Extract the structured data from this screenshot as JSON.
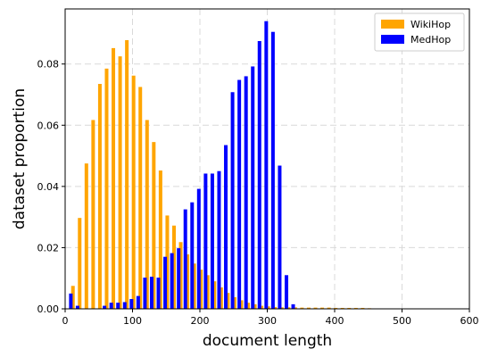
{
  "chart_data": {
    "type": "bar",
    "title": "",
    "xlabel": "document length",
    "ylabel": "dataset proportion",
    "xlim": [
      0,
      600
    ],
    "ylim": [
      0,
      0.098
    ],
    "xticks": [
      0,
      100,
      200,
      300,
      400,
      500,
      600
    ],
    "yticks": [
      0.0,
      0.02,
      0.04,
      0.06,
      0.08
    ],
    "xtick_labels": [
      "0",
      "100",
      "200",
      "300",
      "400",
      "500",
      "600"
    ],
    "ytick_labels": [
      "0.00",
      "0.02",
      "0.04",
      "0.06",
      "0.08"
    ],
    "grid": true,
    "legend_position": "top-right",
    "bin_centers": [
      5,
      15,
      25,
      35,
      45,
      55,
      65,
      75,
      85,
      95,
      105,
      115,
      125,
      135,
      145,
      155,
      165,
      175,
      185,
      195,
      205,
      215,
      225,
      235,
      245,
      255,
      265,
      275,
      285,
      295,
      305,
      315,
      325,
      335,
      345,
      355,
      365,
      375,
      385,
      395,
      405,
      415,
      425,
      435,
      445,
      455
    ],
    "series": [
      {
        "name": "WikiHop",
        "color": "#FFA500",
        "values": [
          0.0,
          0.0075,
          0.0297,
          0.0475,
          0.0617,
          0.0735,
          0.0785,
          0.0852,
          0.0825,
          0.0878,
          0.0762,
          0.0725,
          0.0617,
          0.0545,
          0.0452,
          0.0305,
          0.0272,
          0.0218,
          0.0178,
          0.0148,
          0.0128,
          0.011,
          0.009,
          0.007,
          0.0052,
          0.0038,
          0.0028,
          0.002,
          0.0015,
          0.001,
          0.0008,
          0.0006,
          0.0005,
          0.0005,
          0.0005,
          0.0004,
          0.0004,
          0.0004,
          0.0004,
          0.0004,
          0.0003,
          0.0003,
          0.0003,
          0.0003,
          0.0003,
          0.0002
        ]
      },
      {
        "name": "MedHop",
        "color": "#0000FF",
        "values": [
          0.005,
          0.001,
          0.0,
          0.0,
          0.0,
          0.001,
          0.002,
          0.002,
          0.0022,
          0.0032,
          0.0042,
          0.0102,
          0.0105,
          0.0102,
          0.017,
          0.0182,
          0.0198,
          0.0325,
          0.0348,
          0.0392,
          0.0442,
          0.0442,
          0.045,
          0.0535,
          0.0708,
          0.0748,
          0.076,
          0.0792,
          0.0875,
          0.094,
          0.0905,
          0.0468,
          0.011,
          0.0015,
          0.0,
          0.0,
          0.0,
          0.0,
          0.0,
          0.0,
          0.0,
          0.0,
          0.0,
          0.0,
          0.0,
          0.0
        ]
      }
    ]
  }
}
